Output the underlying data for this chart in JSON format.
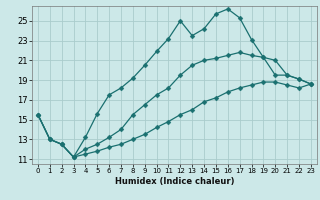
{
  "xlabel": "Humidex (Indice chaleur)",
  "bg_color": "#cce8e8",
  "grid_color": "#aacccc",
  "line_color": "#1a7070",
  "xlim": [
    -0.5,
    23.5
  ],
  "ylim": [
    10.5,
    26.5
  ],
  "xticks": [
    0,
    1,
    2,
    3,
    4,
    5,
    6,
    7,
    8,
    9,
    10,
    11,
    12,
    13,
    14,
    15,
    16,
    17,
    18,
    19,
    20,
    21,
    22,
    23
  ],
  "yticks": [
    11,
    13,
    15,
    17,
    19,
    21,
    23,
    25
  ],
  "series1_x": [
    0,
    1,
    2,
    3,
    4,
    5,
    6,
    7,
    8,
    9,
    10,
    11,
    12,
    13,
    14,
    15,
    16,
    17,
    18,
    19,
    20,
    21,
    22,
    23
  ],
  "series1_y": [
    15.5,
    13.0,
    12.5,
    11.2,
    13.2,
    15.6,
    17.5,
    18.2,
    19.2,
    20.5,
    21.9,
    23.2,
    25.0,
    23.5,
    24.2,
    25.7,
    26.2,
    25.3,
    23.1,
    21.3,
    19.5,
    19.5,
    19.1,
    18.6
  ],
  "series2_x": [
    0,
    1,
    2,
    3,
    4,
    5,
    6,
    7,
    8,
    9,
    10,
    11,
    12,
    13,
    14,
    15,
    16,
    17,
    18,
    19,
    20,
    21,
    22,
    23
  ],
  "series2_y": [
    15.5,
    13.0,
    12.5,
    11.2,
    12.0,
    12.5,
    13.2,
    14.0,
    15.5,
    16.5,
    17.5,
    18.2,
    19.5,
    20.5,
    21.0,
    21.2,
    21.5,
    21.8,
    21.5,
    21.3,
    21.0,
    19.5,
    19.1,
    18.6
  ],
  "series3_x": [
    0,
    1,
    2,
    3,
    4,
    5,
    6,
    7,
    8,
    9,
    10,
    11,
    12,
    13,
    14,
    15,
    16,
    17,
    18,
    19,
    20,
    21,
    22,
    23
  ],
  "series3_y": [
    15.5,
    13.0,
    12.5,
    11.2,
    11.5,
    11.8,
    12.2,
    12.5,
    13.0,
    13.5,
    14.2,
    14.8,
    15.5,
    16.0,
    16.8,
    17.2,
    17.8,
    18.2,
    18.5,
    18.8,
    18.8,
    18.5,
    18.2,
    18.6
  ]
}
